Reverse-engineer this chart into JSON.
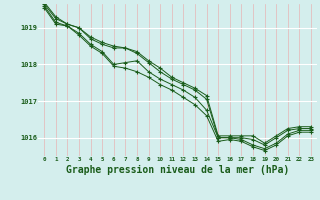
{
  "line1": [
    1019.7,
    1019.3,
    1019.1,
    1019.0,
    1018.75,
    1018.6,
    1018.5,
    1018.45,
    1018.35,
    1018.1,
    1017.9,
    1017.65,
    1017.5,
    1017.35,
    1017.15,
    1016.05,
    1016.05,
    1016.05,
    1016.05,
    1015.85,
    1016.05,
    1016.25,
    1016.3,
    1016.3
  ],
  "line2": [
    1019.65,
    1019.25,
    1019.1,
    1019.0,
    1018.7,
    1018.55,
    1018.45,
    1018.45,
    1018.3,
    1018.05,
    1017.8,
    1017.6,
    1017.45,
    1017.3,
    1017.05,
    1016.0,
    1016.0,
    1016.0,
    1015.95,
    1015.8,
    1016.0,
    1016.2,
    1016.25,
    1016.25
  ],
  "line3": [
    1019.6,
    1019.15,
    1019.05,
    1018.85,
    1018.55,
    1018.35,
    1018.0,
    1018.05,
    1018.1,
    1017.8,
    1017.6,
    1017.45,
    1017.3,
    1017.1,
    1016.75,
    1016.0,
    1016.0,
    1015.95,
    1015.8,
    1015.7,
    1015.85,
    1016.1,
    1016.2,
    1016.2
  ],
  "line4": [
    1019.55,
    1019.1,
    1019.05,
    1018.8,
    1018.5,
    1018.3,
    1017.95,
    1017.9,
    1017.8,
    1017.65,
    1017.45,
    1017.3,
    1017.1,
    1016.9,
    1016.6,
    1015.9,
    1015.95,
    1015.9,
    1015.75,
    1015.65,
    1015.8,
    1016.05,
    1016.15,
    1016.15
  ],
  "hours": [
    0,
    1,
    2,
    3,
    4,
    5,
    6,
    7,
    8,
    9,
    10,
    11,
    12,
    13,
    14,
    15,
    16,
    17,
    18,
    19,
    20,
    21,
    22,
    23
  ],
  "ylim": [
    1015.5,
    1019.65
  ],
  "yticks": [
    1016,
    1017,
    1018,
    1019
  ],
  "bg_color": "#d4eeed",
  "line_color": "#1a5c1a",
  "grid_h_color": "#ffffff",
  "grid_v_color": "#e8b4b4",
  "title": "Graphe pression niveau de la mer (hPa)",
  "title_color": "#1a5c1a",
  "title_fontsize": 7.0
}
